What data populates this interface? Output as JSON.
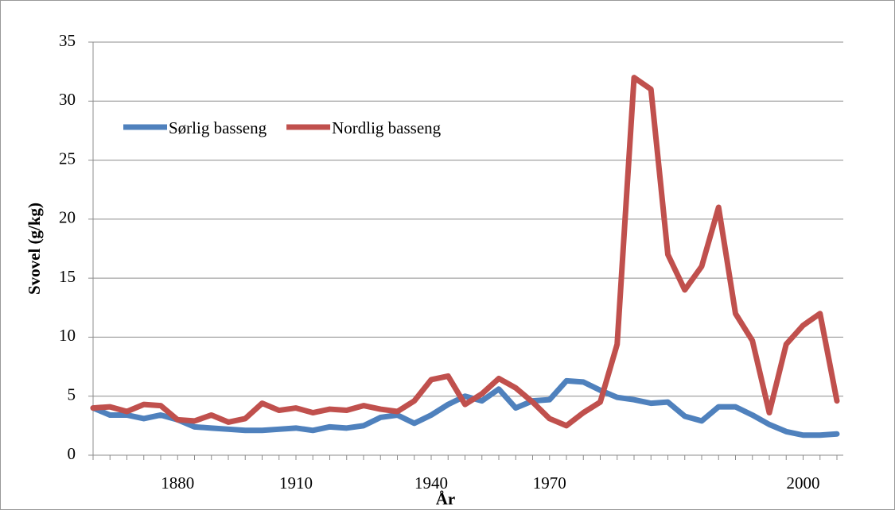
{
  "chart_data": {
    "type": "line",
    "x_label": "År",
    "y_label": "Svovel (g/kg)",
    "categories": [
      null,
      null,
      null,
      null,
      null,
      "1880",
      null,
      null,
      null,
      null,
      null,
      null,
      "1910",
      null,
      null,
      null,
      null,
      null,
      null,
      null,
      "1940",
      null,
      null,
      null,
      null,
      null,
      null,
      "1970",
      null,
      null,
      null,
      null,
      null,
      null,
      null,
      null,
      null,
      null,
      null,
      null,
      null,
      null,
      "2000",
      null,
      null
    ],
    "series": [
      {
        "name": "Sørlig basseng",
        "color": "#4f81bd",
        "values": [
          4.0,
          3.4,
          3.4,
          3.1,
          3.4,
          3.0,
          2.4,
          2.3,
          2.2,
          2.1,
          2.1,
          2.2,
          2.3,
          2.1,
          2.4,
          2.3,
          2.5,
          3.2,
          3.4,
          2.7,
          3.4,
          4.3,
          5.0,
          4.6,
          5.6,
          4.0,
          4.6,
          4.7,
          6.3,
          6.2,
          5.5,
          4.9,
          4.7,
          4.4,
          4.5,
          3.3,
          2.9,
          4.1,
          4.1,
          3.4,
          2.6,
          2.0,
          1.7,
          1.7,
          1.8
        ]
      },
      {
        "name": "Nordlig basseng",
        "color": "#c0504d",
        "values": [
          4.0,
          4.1,
          3.7,
          4.3,
          4.2,
          3.0,
          2.9,
          3.4,
          2.8,
          3.1,
          4.4,
          3.8,
          4.0,
          3.6,
          3.9,
          3.8,
          4.2,
          3.9,
          3.7,
          4.6,
          6.4,
          6.7,
          4.3,
          5.2,
          6.5,
          5.7,
          4.5,
          3.1,
          2.5,
          3.6,
          4.5,
          9.4,
          32,
          31,
          17,
          14,
          16,
          21,
          12,
          9.7,
          3.6,
          9.4,
          11,
          12,
          4.6
        ]
      }
    ],
    "ylim": [
      0,
      35
    ],
    "yticks": [
      0,
      5,
      10,
      15,
      20,
      25,
      30,
      35
    ],
    "grid": true,
    "legend": "upper-left"
  }
}
